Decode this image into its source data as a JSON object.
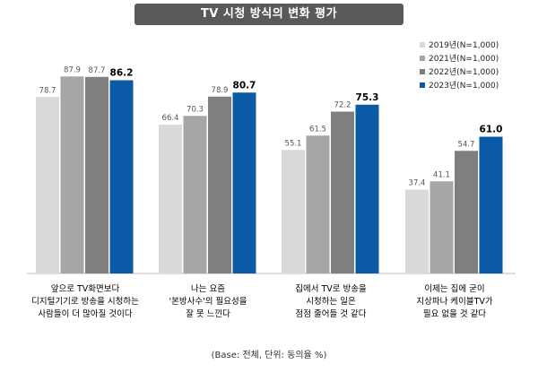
{
  "title": "TV 시청 방식의 변화 평가",
  "footnote": "(Base: 전체, 단위: 동의율 %)",
  "chart_data": {
    "type": "bar",
    "title": "TV 시청 방식의 변화 평가",
    "ylim": [
      0,
      100
    ],
    "legend_position": "top-right",
    "grid": false,
    "categories": [
      [
        "앞으로 TV화면보다",
        "디지털기기로 방송을 시청하는",
        "사람들이 더 많아질 것이다"
      ],
      [
        "나는 요즘",
        "'본방사수'의 필요성을",
        "잘 못 느낀다"
      ],
      [
        "집에서 TV로 방송을",
        "시청하는 일은",
        "점점 줄어들 것 같다"
      ],
      [
        "이제는 집에 굳이",
        "지상파나 케이블TV가",
        "필요 없을 것 같다"
      ]
    ],
    "series": [
      {
        "name": "2019년(N=1,000)",
        "color": "#d9d9d9",
        "values": [
          78.7,
          66.4,
          55.1,
          37.4
        ]
      },
      {
        "name": "2021년(N=1,000)",
        "color": "#a6a6a6",
        "values": [
          87.9,
          70.3,
          61.5,
          41.1
        ]
      },
      {
        "name": "2022년(N=1,000)",
        "color": "#7f7f7f",
        "values": [
          87.7,
          78.9,
          72.2,
          54.7
        ]
      },
      {
        "name": "2023년(N=1,000)",
        "color": "#0b5aa6",
        "values": [
          86.2,
          80.7,
          75.3,
          61.0
        ]
      }
    ]
  }
}
